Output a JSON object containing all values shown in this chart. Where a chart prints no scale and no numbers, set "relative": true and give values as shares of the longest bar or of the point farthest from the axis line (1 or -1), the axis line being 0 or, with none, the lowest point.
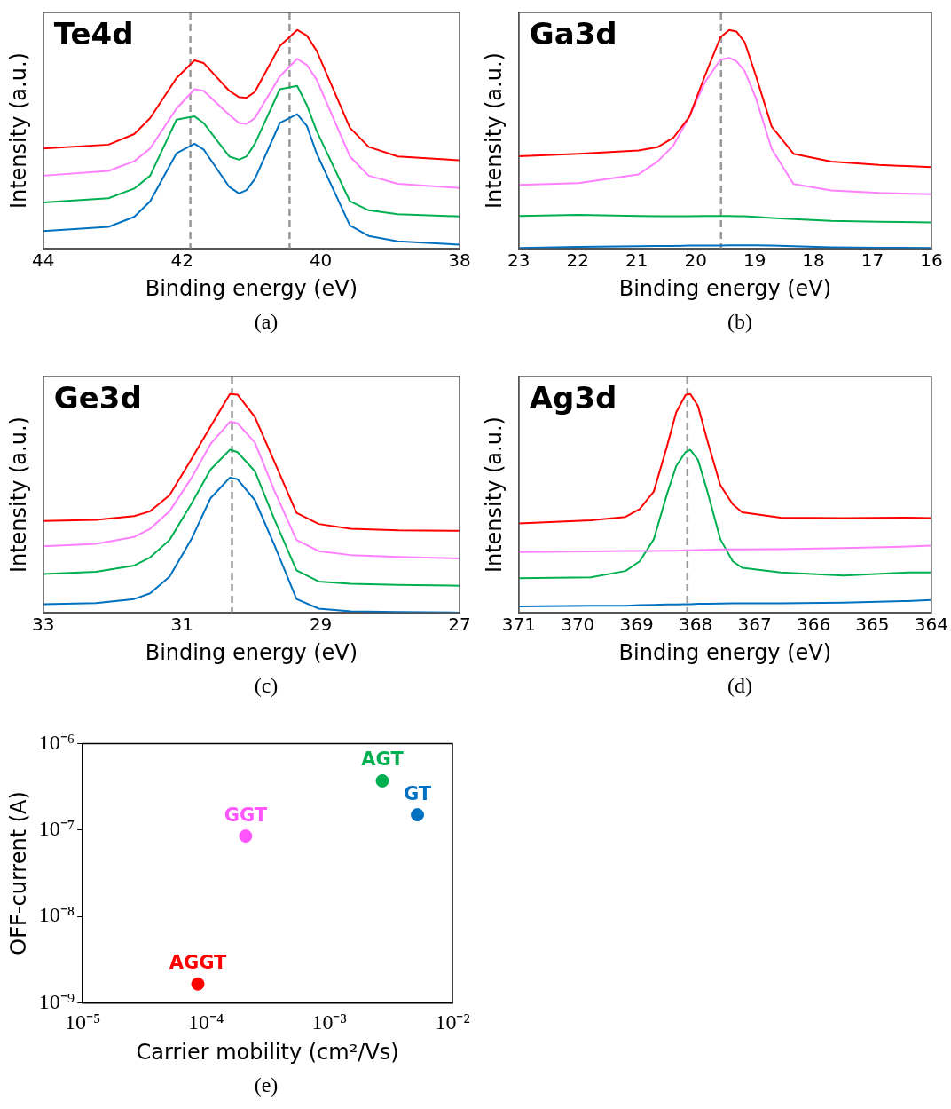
{
  "chart_data": [
    {
      "type": "line",
      "title": "Te4d",
      "xlabel": "Binding energy (eV)",
      "ylabel": "Intensity (a.u.)",
      "annotations": [
        "(a)"
      ],
      "relative": true,
      "legend": false,
      "marker": "none",
      "line_style": "solid",
      "xlim": [
        44,
        38
      ],
      "xticks": [
        44,
        42,
        40,
        38
      ],
      "x": [
        44,
        43.06,
        42.69,
        42.46,
        42.08,
        41.82,
        41.69,
        41.32,
        41.18,
        41.07,
        40.95,
        40.59,
        40.34,
        40.2,
        40.06,
        39.58,
        39.31,
        38.89,
        38
      ],
      "series": [
        {
          "color": "#ff0000",
          "values": [
            0.458,
            0.476,
            0.524,
            0.597,
            0.78,
            0.861,
            0.849,
            0.722,
            0.693,
            0.69,
            0.717,
            0.927,
            1,
            0.974,
            0.905,
            0.553,
            0.466,
            0.422,
            0.404
          ]
        },
        {
          "color": "#ff80ff",
          "values": [
            0.334,
            0.356,
            0.4,
            0.458,
            0.641,
            0.729,
            0.722,
            0.612,
            0.575,
            0.571,
            0.597,
            0.788,
            0.868,
            0.839,
            0.773,
            0.422,
            0.334,
            0.297,
            0.278
          ]
        },
        {
          "color": "#00b050",
          "values": [
            0.212,
            0.231,
            0.275,
            0.334,
            0.59,
            0.605,
            0.575,
            0.422,
            0.407,
            0.422,
            0.48,
            0.729,
            0.744,
            0.656,
            0.539,
            0.217,
            0.176,
            0.158,
            0.148
          ]
        },
        {
          "color": "#0070c0",
          "values": [
            0.081,
            0.1,
            0.146,
            0.217,
            0.436,
            0.48,
            0.454,
            0.283,
            0.253,
            0.268,
            0.319,
            0.575,
            0.615,
            0.561,
            0.436,
            0.107,
            0.059,
            0.034,
            0.019
          ]
        }
      ],
      "ref_lines": [
        {
          "axis": "x",
          "value": 41.88,
          "color": "#999999",
          "line_style": "dashed"
        },
        {
          "axis": "x",
          "value": 40.45,
          "color": "#999999",
          "line_style": "dashed"
        }
      ]
    },
    {
      "type": "line",
      "title": "Ga3d",
      "xlabel": "Binding energy (eV)",
      "ylabel": "Intensity (a.u.)",
      "annotations": [
        "(b)"
      ],
      "relative": true,
      "legend": false,
      "marker": "none",
      "line_style": "solid",
      "xlim": [
        23,
        16
      ],
      "xticks": [
        23,
        22,
        21,
        20,
        19,
        18,
        17,
        16
      ],
      "x": [
        23,
        21.99,
        20.97,
        20.65,
        20.38,
        20.11,
        19.84,
        19.58,
        19.43,
        19.31,
        19.17,
        18.98,
        18.71,
        18.34,
        17.7,
        16.89,
        16
      ],
      "series": [
        {
          "color": "#ff0000",
          "values": [
            0.423,
            0.434,
            0.449,
            0.464,
            0.507,
            0.602,
            0.792,
            0.966,
            1,
            0.993,
            0.945,
            0.792,
            0.558,
            0.434,
            0.398,
            0.383,
            0.373
          ]
        },
        {
          "color": "#ff80ff",
          "values": [
            0.292,
            0.3,
            0.34,
            0.398,
            0.471,
            0.602,
            0.762,
            0.864,
            0.872,
            0.857,
            0.813,
            0.69,
            0.456,
            0.296,
            0.267,
            0.255,
            0.249
          ]
        },
        {
          "color": "#00b050",
          "values": [
            0.15,
            0.155,
            0.15,
            0.149,
            0.149,
            0.149,
            0.15,
            0.15,
            0.15,
            0.149,
            0.149,
            0.146,
            0.141,
            0.136,
            0.128,
            0.124,
            0.12
          ]
        },
        {
          "color": "#0070c0",
          "values": [
            0.004,
            0.009,
            0.012,
            0.013,
            0.013,
            0.015,
            0.015,
            0.015,
            0.016,
            0.016,
            0.016,
            0.016,
            0.015,
            0.012,
            0.007,
            0.005,
            0.004
          ]
        }
      ],
      "ref_lines": [
        {
          "axis": "x",
          "value": 19.57,
          "color": "#999999",
          "line_style": "dashed"
        }
      ]
    },
    {
      "type": "line",
      "title": "Ge3d",
      "xlabel": "Binding energy (eV)",
      "ylabel": "Intensity (a.u.)",
      "annotations": [
        "(c)"
      ],
      "relative": true,
      "legend": false,
      "marker": "none",
      "line_style": "solid",
      "xlim": [
        33,
        27
      ],
      "xticks": [
        33,
        31,
        29,
        27
      ],
      "x": [
        33,
        32.24,
        31.69,
        31.46,
        31.18,
        30.86,
        30.59,
        30.31,
        30.2,
        29.95,
        29.67,
        29.35,
        29.03,
        28.57,
        27.88,
        27
      ],
      "series": [
        {
          "color": "#ff0000",
          "values": [
            0.42,
            0.425,
            0.442,
            0.464,
            0.537,
            0.705,
            0.851,
            1,
            0.997,
            0.895,
            0.691,
            0.457,
            0.406,
            0.384,
            0.377,
            0.375
          ]
        },
        {
          "color": "#ff80ff",
          "values": [
            0.304,
            0.315,
            0.347,
            0.384,
            0.464,
            0.618,
            0.771,
            0.873,
            0.866,
            0.778,
            0.559,
            0.333,
            0.282,
            0.264,
            0.255,
            0.248
          ]
        },
        {
          "color": "#00b050",
          "values": [
            0.177,
            0.187,
            0.216,
            0.253,
            0.333,
            0.501,
            0.654,
            0.745,
            0.734,
            0.647,
            0.428,
            0.194,
            0.143,
            0.133,
            0.128,
            0.124
          ]
        },
        {
          "color": "#0070c0",
          "values": [
            0.039,
            0.044,
            0.063,
            0.089,
            0.165,
            0.34,
            0.523,
            0.618,
            0.61,
            0.515,
            0.311,
            0.063,
            0.019,
            0.007,
            0.004,
            0.001
          ]
        }
      ],
      "ref_lines": [
        {
          "axis": "x",
          "value": 30.28,
          "color": "#999999",
          "line_style": "dashed"
        }
      ]
    },
    {
      "type": "line",
      "title": "Ag3d",
      "xlabel": "Binding energy (eV)",
      "ylabel": "Intensity (a.u.)",
      "annotations": [
        "(d)"
      ],
      "relative": true,
      "legend": false,
      "marker": "none",
      "line_style": "solid",
      "xlim": [
        371,
        364
      ],
      "xticks": [
        371,
        370,
        369,
        368,
        367,
        366,
        365,
        364
      ],
      "x": [
        371,
        369.78,
        369.19,
        368.95,
        368.71,
        368.49,
        368.33,
        368.17,
        368.09,
        367.96,
        367.8,
        367.58,
        367.37,
        367.21,
        366.56,
        365.49,
        364.41,
        364
      ],
      "series": [
        {
          "color": "#ff0000",
          "values": [
            0.409,
            0.423,
            0.438,
            0.474,
            0.554,
            0.757,
            0.916,
            0.996,
            1,
            0.945,
            0.786,
            0.583,
            0.496,
            0.459,
            0.435,
            0.433,
            0.435,
            0.433
          ]
        },
        {
          "color": "#ff80ff",
          "values": [
            0.278,
            0.281,
            0.283,
            0.283,
            0.283,
            0.284,
            0.284,
            0.286,
            0.286,
            0.287,
            0.288,
            0.29,
            0.29,
            0.29,
            0.291,
            0.296,
            0.303,
            0.307
          ]
        },
        {
          "color": "#00b050",
          "values": [
            0.158,
            0.162,
            0.191,
            0.235,
            0.336,
            0.539,
            0.67,
            0.735,
            0.745,
            0.699,
            0.554,
            0.336,
            0.235,
            0.206,
            0.184,
            0.17,
            0.184,
            0.184
          ]
        },
        {
          "color": "#0070c0",
          "values": [
            0.029,
            0.032,
            0.032,
            0.035,
            0.036,
            0.038,
            0.038,
            0.039,
            0.039,
            0.041,
            0.041,
            0.042,
            0.043,
            0.043,
            0.043,
            0.046,
            0.054,
            0.059
          ]
        }
      ],
      "ref_lines": [
        {
          "axis": "x",
          "value": 368.14,
          "color": "#999999",
          "line_style": "dashed"
        }
      ]
    },
    {
      "type": "scatter",
      "xlabel": "Carrier mobility (cm²/Vs)",
      "ylabel": "OFF-current (A)",
      "annotations": [
        "(e)"
      ],
      "log": "xy",
      "legend": false,
      "marker": "circle",
      "xlim": [
        1e-05,
        0.01
      ],
      "ylim": [
        1e-09,
        1e-06
      ],
      "xticks": [
        {
          "value": 1e-05,
          "label": "10⁻⁵"
        },
        {
          "value": 0.0001,
          "label": "10⁻⁴"
        },
        {
          "value": 0.001,
          "label": "10⁻³"
        },
        {
          "value": 0.01,
          "label": "10⁻²"
        }
      ],
      "yticks": [
        {
          "value": 1e-09,
          "label": "10⁻⁹"
        },
        {
          "value": 1e-08,
          "label": "10⁻⁸"
        },
        {
          "value": 1e-07,
          "label": "10⁻⁷"
        },
        {
          "value": 1e-06,
          "label": "10⁻⁶"
        }
      ],
      "series": [
        {
          "name": "AGGT",
          "color": "#ff0000",
          "x": [
            8.6e-05
          ],
          "values": [
            1.65e-09
          ]
        },
        {
          "name": "GGT",
          "color": "#ff55ff",
          "x": [
            0.00021
          ],
          "values": [
            8.5e-08
          ]
        },
        {
          "name": "AGT",
          "color": "#00b050",
          "x": [
            0.0027
          ],
          "values": [
            3.7e-07
          ]
        },
        {
          "name": "GT",
          "color": "#0070c0",
          "x": [
            0.0052
          ],
          "values": [
            1.5e-07
          ]
        }
      ]
    }
  ]
}
